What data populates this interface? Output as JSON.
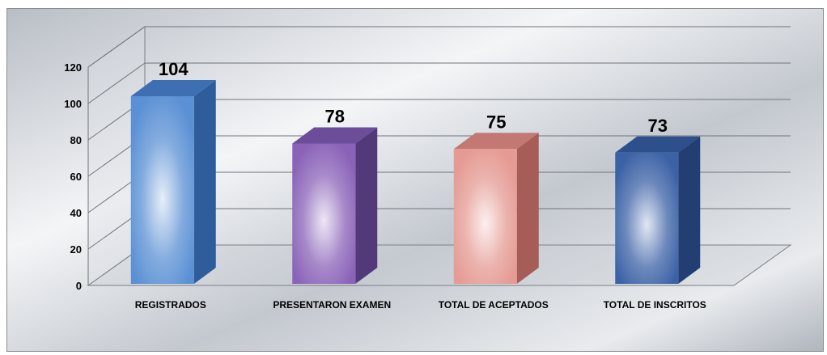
{
  "chart_data": {
    "type": "bar",
    "categories": [
      "REGISTRADOS",
      "PRESENTARON EXAMEN",
      "TOTAL DE ACEPTADOS",
      "TOTAL DE INSCRITOS"
    ],
    "values": [
      104,
      78,
      75,
      73
    ],
    "data_labels": [
      "104",
      "78",
      "75",
      "73"
    ],
    "y_ticks": [
      "0",
      "20",
      "40",
      "60",
      "80",
      "100",
      "120"
    ],
    "ylim": [
      0,
      120
    ],
    "grid": true,
    "legend": "none",
    "style": "3d-column",
    "bar_colors": [
      "#5a90d4",
      "#8a62b8",
      "#e59a93",
      "#3c62a6"
    ],
    "bar_side_colors": [
      "#2f5d9c",
      "#523a7a",
      "#a65d58",
      "#223e73"
    ],
    "bar_top_colors": [
      "#3f6fb3",
      "#6c4d99",
      "#c47873",
      "#2d4f8c"
    ]
  }
}
